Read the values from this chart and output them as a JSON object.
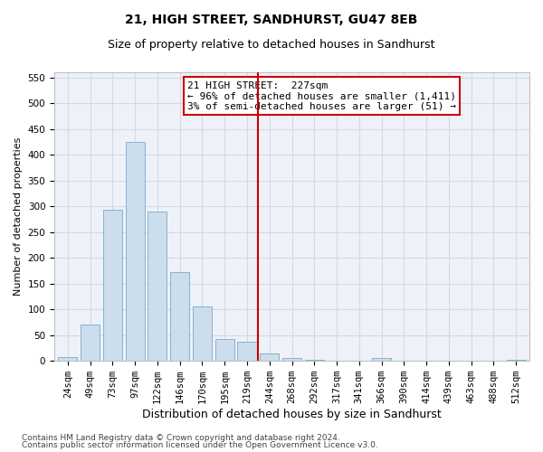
{
  "title": "21, HIGH STREET, SANDHURST, GU47 8EB",
  "subtitle": "Size of property relative to detached houses in Sandhurst",
  "xlabel": "Distribution of detached houses by size in Sandhurst",
  "ylabel": "Number of detached properties",
  "bar_labels": [
    "24sqm",
    "49sqm",
    "73sqm",
    "97sqm",
    "122sqm",
    "146sqm",
    "170sqm",
    "195sqm",
    "219sqm",
    "244sqm",
    "268sqm",
    "292sqm",
    "317sqm",
    "341sqm",
    "366sqm",
    "390sqm",
    "414sqm",
    "439sqm",
    "463sqm",
    "488sqm",
    "512sqm"
  ],
  "bar_values": [
    7,
    70,
    293,
    425,
    290,
    173,
    105,
    43,
    37,
    14,
    6,
    2,
    1,
    0,
    5,
    0,
    0,
    1,
    0,
    0,
    2
  ],
  "bar_color": "#ccdded",
  "bar_edge_color": "#7aaac8",
  "grid_color": "#d0dae8",
  "background_color": "#eef2f8",
  "vline_x": 8.5,
  "vline_color": "#cc0000",
  "annotation_line1": "21 HIGH STREET:  227sqm",
  "annotation_line2": "← 96% of detached houses are smaller (1,411)",
  "annotation_line3": "3% of semi-detached houses are larger (51) →",
  "annotation_box_color": "#cc0000",
  "ylim": [
    0,
    560
  ],
  "yticks": [
    0,
    50,
    100,
    150,
    200,
    250,
    300,
    350,
    400,
    450,
    500,
    550
  ],
  "footer_line1": "Contains HM Land Registry data © Crown copyright and database right 2024.",
  "footer_line2": "Contains public sector information licensed under the Open Government Licence v3.0.",
  "title_fontsize": 10,
  "subtitle_fontsize": 9,
  "xlabel_fontsize": 9,
  "ylabel_fontsize": 8,
  "tick_fontsize": 7.5,
  "annotation_fontsize": 8,
  "footer_fontsize": 6.5
}
